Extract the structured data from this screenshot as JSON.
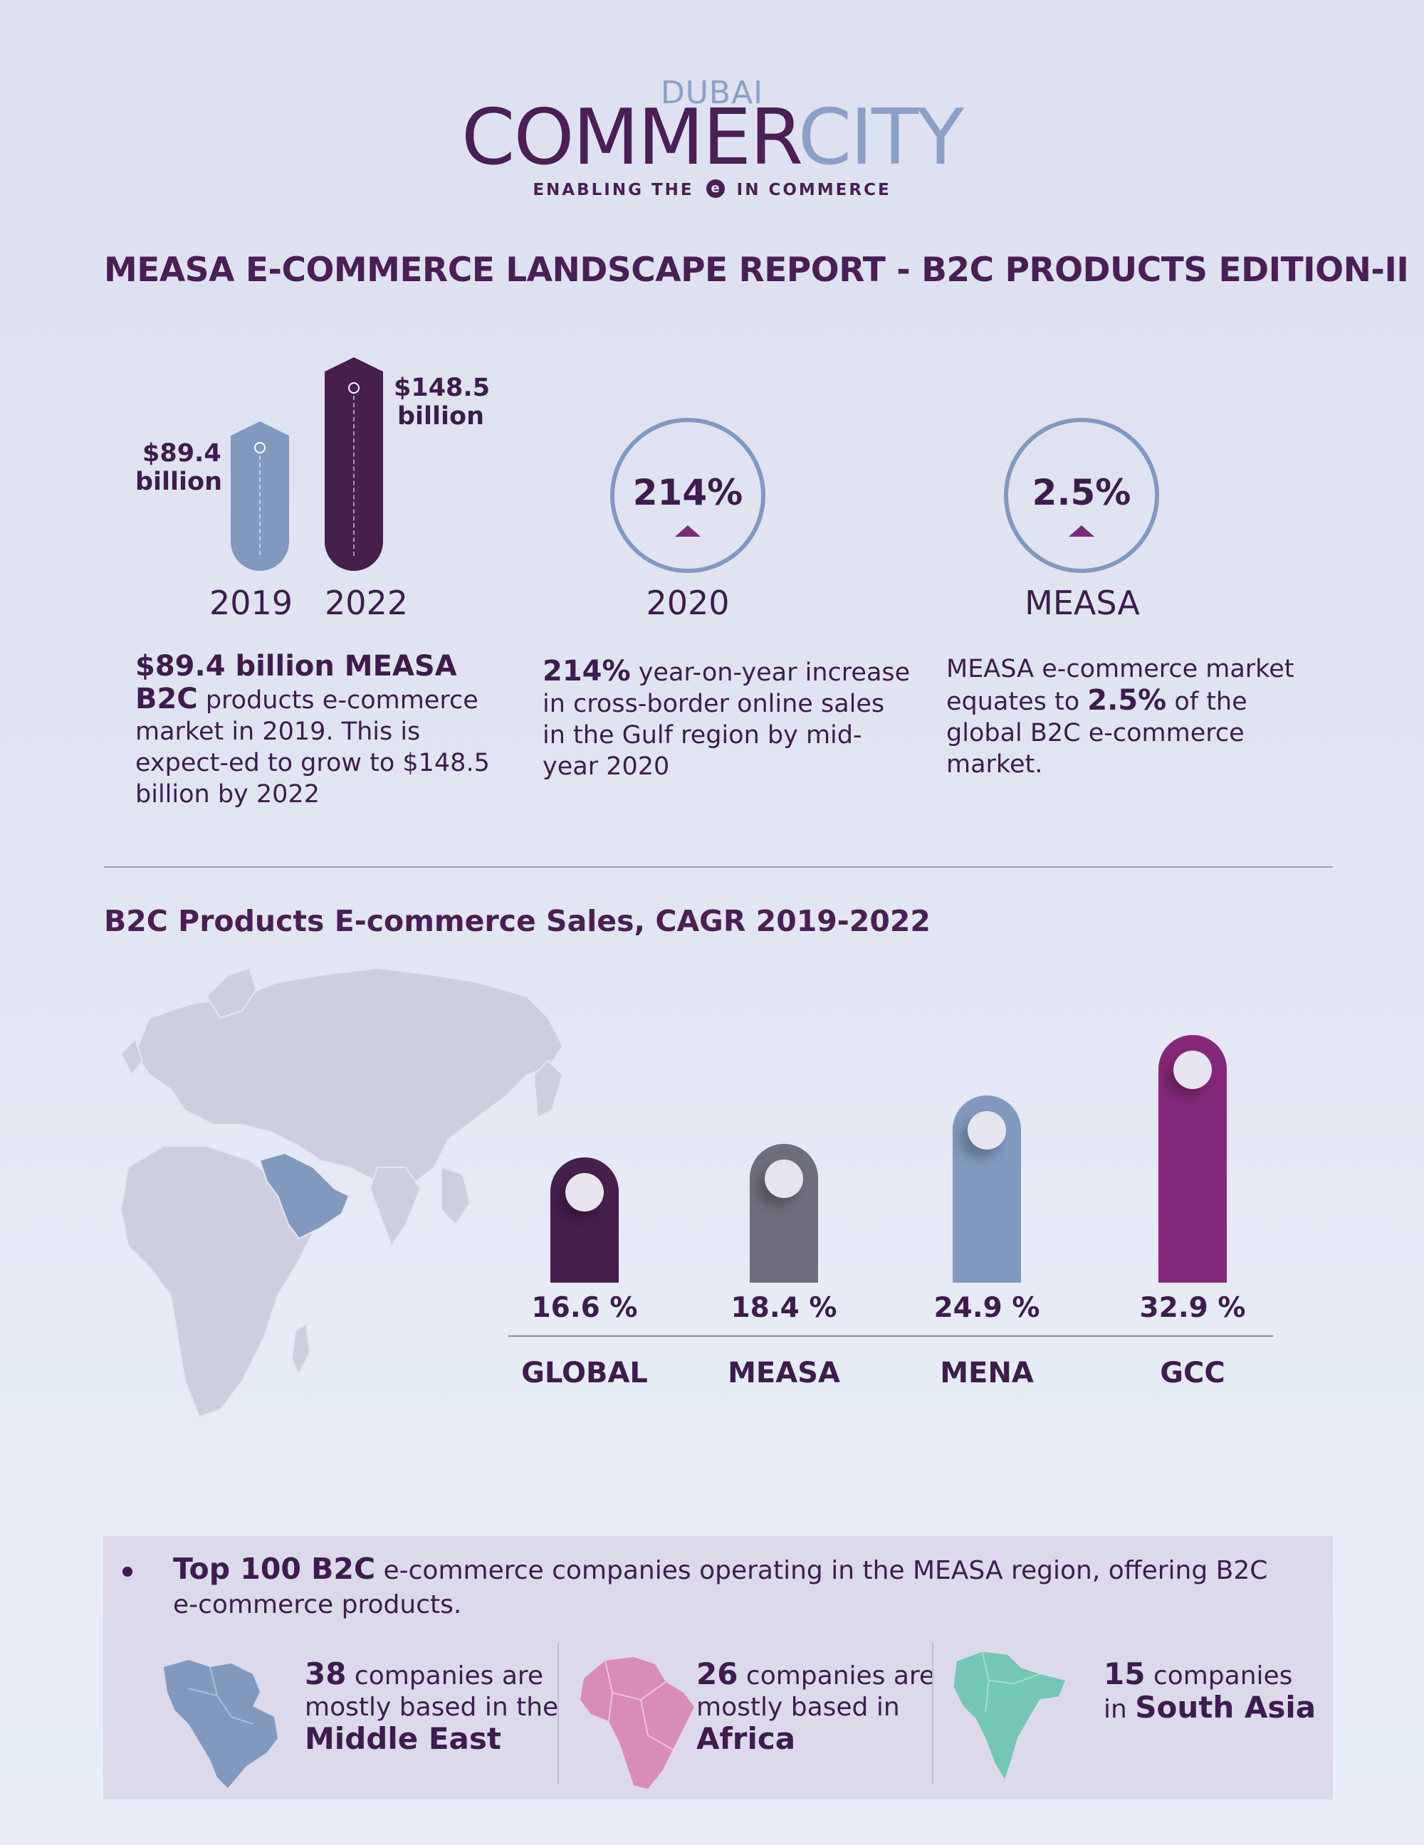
{
  "logo": {
    "top": "DUBAI",
    "word_a": "COMMER",
    "word_b": "CITY",
    "tag_a": "ENABLING THE",
    "tag_mark": "e",
    "tag_b": "IN COMMERCE"
  },
  "title": "MEASA E-COMMERCE LANDSCAPE REPORT - B2C PRODUCTS EDITION-II",
  "market": {
    "bars": [
      {
        "year": "2019",
        "value_billion": 89.4,
        "label_amount": "$89.4",
        "label_unit": "billion"
      },
      {
        "year": "2022",
        "value_billion": 148.5,
        "label_amount": "$148.5",
        "label_unit": "billion"
      }
    ],
    "text_bold": "$89.4 billion MEASA B2C",
    "text_rest": " products e-commerce market in 2019. This is expect-ed to grow to $148.5 billion by 2022"
  },
  "cross_border": {
    "value": "214%",
    "year": "2020",
    "text_bold": "214%",
    "text_rest": " year-on-year increase in cross-border online sales in the Gulf region by mid-year 2020"
  },
  "share": {
    "value": "2.5%",
    "label": "MEASA",
    "text_a": "MEASA e-commerce market equates to ",
    "text_bold": "2.5%",
    "text_b": " of the global B2C e-commerce market."
  },
  "cagr": {
    "title": "B2C Products E-commerce Sales, CAGR 2019-2022",
    "items": [
      {
        "name": "GLOBAL",
        "value": 16.6,
        "label": "16.6 %",
        "color": "#461f4d"
      },
      {
        "name": "MEASA",
        "value": 18.4,
        "label": "18.4 %",
        "color": "#6f6e7d"
      },
      {
        "name": "MENA",
        "value": 24.9,
        "label": "24.9 %",
        "color": "#8199bf"
      },
      {
        "name": "GCC",
        "value": 32.9,
        "label": "32.9 %",
        "color": "#86287a"
      }
    ]
  },
  "top100": {
    "bold": "Top 100 B2C",
    "rest": " e-commerce companies operating in the MEASA region, offering B2C e-commerce products.",
    "regions": [
      {
        "count": "38",
        "line1": " companies are",
        "line2": "mostly based in the",
        "place": "Middle East",
        "color": "#8199bf"
      },
      {
        "count": "26",
        "line1": " companies are",
        "line2": "mostly based in",
        "place": "Africa",
        "color": "#d98cb5"
      },
      {
        "count": "15",
        "line1": " companies",
        "line2": "in ",
        "place": "South Asia",
        "color": "#74c7b4"
      }
    ]
  },
  "colors": {
    "primary": "#4a1f55",
    "secondary": "#8199bf",
    "accent": "#86287a"
  }
}
